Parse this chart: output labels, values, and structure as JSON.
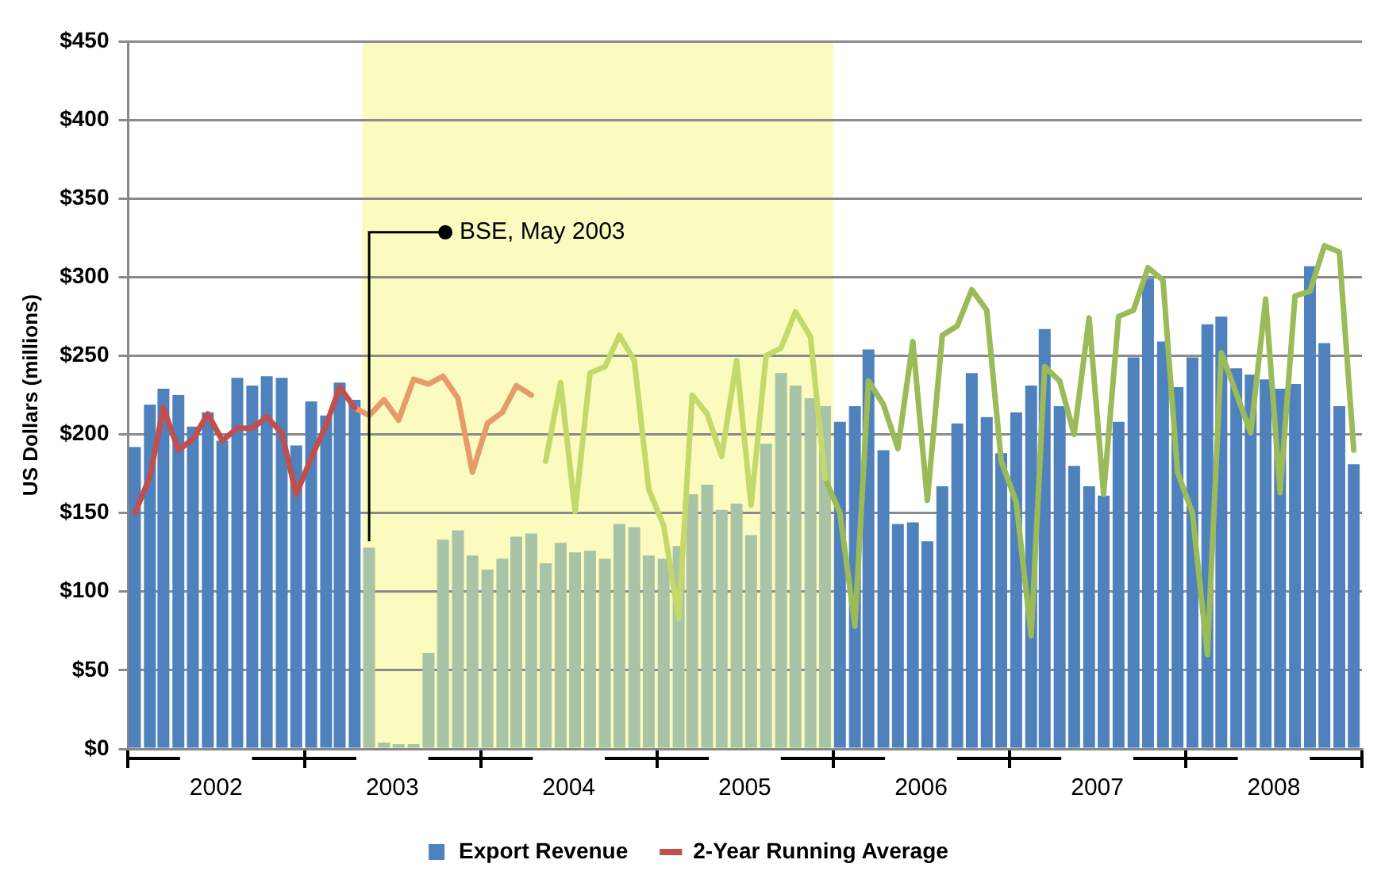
{
  "chart_data": {
    "type": "bar",
    "ylabel": "US Dollars (millions)",
    "x": [
      "2002-01-15",
      "2002-02-15",
      "2002-03-15",
      "2002-04-15",
      "2002-05-15",
      "2002-06-15",
      "2002-07-15",
      "2002-08-15",
      "2002-09-15",
      "2002-10-15",
      "2002-11-15",
      "2002-12-15",
      "2003-01-15",
      "2003-02-15",
      "2003-03-15",
      "2003-04-15",
      "2003-05-15",
      "2003-06-15",
      "2003-07-15",
      "2003-08-15",
      "2003-09-15",
      "2003-10-15",
      "2003-11-15",
      "2003-12-15",
      "2004-01-15",
      "2004-02-15",
      "2004-03-15",
      "2004-04-15",
      "2004-05-15",
      "2004-06-15",
      "2004-07-15",
      "2004-08-15",
      "2004-09-15",
      "2004-10-15",
      "2004-11-15",
      "2004-12-15",
      "2005-01-15",
      "2005-02-15",
      "2005-03-15",
      "2005-04-15",
      "2005-05-15",
      "2005-06-15",
      "2005-07-15",
      "2005-08-15",
      "2005-09-15",
      "2005-10-15",
      "2005-11-15",
      "2005-12-15",
      "2006-01-15",
      "2006-02-15",
      "2006-03-15",
      "2006-04-15",
      "2006-05-15",
      "2006-06-15",
      "2006-07-15",
      "2006-08-15",
      "2006-09-15",
      "2006-10-15",
      "2006-11-15",
      "2006-12-15",
      "2007-01-15",
      "2007-02-15",
      "2007-03-15",
      "2007-04-15",
      "2007-05-15",
      "2007-06-15",
      "2007-07-15",
      "2007-08-15",
      "2007-09-15",
      "2007-10-15",
      "2007-11-15",
      "2007-12-15",
      "2008-01-15",
      "2008-02-15",
      "2008-03-15",
      "2008-04-15",
      "2008-05-15",
      "2008-06-15",
      "2008-07-15",
      "2008-08-15",
      "2008-09-15",
      "2008-10-15",
      "2008-11-15",
      "2008-12-15"
    ],
    "series": [
      {
        "name": "Export Revenue",
        "values": [
          192,
          219,
          229,
          225,
          205,
          214,
          196,
          236,
          231,
          237,
          236,
          193,
          221,
          212,
          233,
          222,
          128,
          4,
          3,
          3,
          61,
          133,
          139,
          123,
          114,
          121,
          135,
          137,
          118,
          131,
          125,
          126,
          121,
          143,
          141,
          123,
          121,
          129,
          162,
          168,
          152,
          156,
          136,
          194,
          239,
          231,
          223,
          218,
          208,
          218,
          254,
          190,
          143,
          144,
          132,
          167,
          207,
          239,
          211,
          188,
          214,
          231,
          267,
          218,
          180,
          167,
          161,
          208,
          249,
          299,
          259,
          230,
          249,
          270,
          275,
          242,
          238,
          235,
          229,
          232,
          307,
          258,
          218,
          181
        ],
        "colors": [
          "#4f81bd",
          "#4f81bd",
          "#4f81bd",
          "#4f81bd",
          "#4f81bd",
          "#4f81bd",
          "#4f81bd",
          "#4f81bd",
          "#4f81bd",
          "#4f81bd",
          "#4f81bd",
          "#4f81bd",
          "#4f81bd",
          "#4f81bd",
          "#4f81bd",
          "#4f81bd",
          "#a9c3a6",
          "#a9c3a6",
          "#a9c3a6",
          "#a9c3a6",
          "#a9c3a6",
          "#a9c3a6",
          "#a9c3a6",
          "#a9c3a6",
          "#a9c3a6",
          "#a9c3a6",
          "#a9c3a6",
          "#a9c3a6",
          "#a9c3a6",
          "#a9c3a6",
          "#a9c3a6",
          "#a9c3a6",
          "#a9c3a6",
          "#a9c3a6",
          "#a9c3a6",
          "#a9c3a6",
          "#a9c3a6",
          "#a9c3a6",
          "#a9c3a6",
          "#a9c3a6",
          "#a9c3a6",
          "#a9c3a6",
          "#a9c3a6",
          "#a9c3a6",
          "#a9c3a6",
          "#a9c3a6",
          "#a9c3a6",
          "#a9c3a6",
          "#4f81bd",
          "#4f81bd",
          "#4f81bd",
          "#4f81bd",
          "#4f81bd",
          "#4f81bd",
          "#4f81bd",
          "#4f81bd",
          "#4f81bd",
          "#4f81bd",
          "#4f81bd",
          "#4f81bd",
          "#4f81bd",
          "#4f81bd",
          "#4f81bd",
          "#4f81bd",
          "#4f81bd",
          "#4f81bd",
          "#4f81bd",
          "#4f81bd",
          "#4f81bd",
          "#4f81bd",
          "#4f81bd",
          "#4f81bd",
          "#4f81bd",
          "#4f81bd",
          "#4f81bd",
          "#4f81bd",
          "#4f81bd",
          "#4f81bd",
          "#4f81bd",
          "#4f81bd",
          "#4f81bd",
          "#4f81bd",
          "#4f81bd",
          "#4f81bd"
        ]
      },
      {
        "name": "2-Year Running Average",
        "type": "line",
        "color": "#c0504d",
        "values": [
          150,
          173,
          217,
          190,
          197,
          213,
          196,
          204,
          204,
          211,
          201,
          162,
          185,
          206,
          230,
          217,
          null,
          null,
          null,
          null,
          null,
          null,
          null,
          null,
          null,
          null,
          null,
          null,
          null,
          null,
          null,
          null,
          null,
          null,
          null,
          null,
          null,
          null,
          null,
          null,
          null,
          null,
          null,
          null,
          null,
          null,
          null,
          null,
          null,
          null,
          null,
          null,
          null,
          null,
          null,
          null,
          null,
          null,
          null,
          null,
          null,
          null,
          null,
          null,
          null,
          null,
          null,
          null,
          null,
          null,
          null,
          null,
          null,
          null,
          null,
          null,
          null,
          null,
          null,
          null,
          null,
          null,
          null,
          null
        ]
      },
      {
        "type": "line",
        "color": "#e59b6a",
        "values": [
          null,
          null,
          null,
          null,
          null,
          null,
          null,
          null,
          null,
          null,
          null,
          null,
          null,
          null,
          null,
          217,
          212,
          222,
          209,
          235,
          232,
          237,
          223,
          176,
          207,
          214,
          231,
          225,
          null,
          null,
          null,
          null,
          null,
          null,
          null,
          null,
          null,
          null,
          null,
          null,
          null,
          null,
          null,
          null,
          null,
          null,
          null,
          null,
          null,
          null,
          null,
          null,
          null,
          null,
          null,
          null,
          null,
          null,
          null,
          null,
          null,
          null,
          null,
          null,
          null,
          null,
          null,
          null,
          null,
          null,
          null,
          null,
          null,
          null,
          null,
          null,
          null,
          null,
          null,
          null,
          null,
          null,
          null,
          null
        ]
      },
      {
        "type": "line",
        "color": "#c5d96a",
        "values": [
          null,
          null,
          null,
          null,
          null,
          null,
          null,
          null,
          null,
          null,
          null,
          null,
          null,
          null,
          null,
          null,
          null,
          null,
          null,
          null,
          null,
          null,
          null,
          null,
          null,
          null,
          null,
          null,
          183,
          233,
          151,
          239,
          243,
          263,
          247,
          165,
          142,
          83,
          225,
          213,
          186,
          247,
          155,
          250,
          255,
          278,
          262,
          172,
          null,
          null,
          null,
          null,
          null,
          null,
          null,
          null,
          null,
          null,
          null,
          null,
          null,
          null,
          null,
          null,
          null,
          null,
          null,
          null,
          null,
          null,
          null,
          null,
          null,
          null,
          null,
          null,
          null,
          null,
          null,
          null,
          null,
          null,
          null,
          null
        ]
      },
      {
        "type": "line",
        "color": "#9bbb59",
        "values": [
          null,
          null,
          null,
          null,
          null,
          null,
          null,
          null,
          null,
          null,
          null,
          null,
          null,
          null,
          null,
          null,
          null,
          null,
          null,
          null,
          null,
          null,
          null,
          null,
          null,
          null,
          null,
          null,
          null,
          null,
          null,
          null,
          null,
          null,
          null,
          null,
          null,
          null,
          null,
          null,
          null,
          null,
          null,
          null,
          null,
          null,
          null,
          172,
          150,
          78,
          234,
          219,
          191,
          259,
          158,
          263,
          269,
          292,
          279,
          183,
          157,
          72,
          243,
          234,
          200,
          274,
          162,
          275,
          279,
          306,
          298,
          176,
          150,
          60,
          252,
          226,
          201,
          286,
          163,
          288,
          291,
          320,
          316,
          190
        ]
      }
    ],
    "xlim": [
      "2002-01-01",
      "2009-01-01"
    ],
    "xticks": [
      {
        "value": "2002-01-01",
        "label": null
      },
      {
        "value": "2002-07-02",
        "label": "2002"
      },
      {
        "value": "2003-01-01",
        "label": null
      },
      {
        "value": "2003-07-02",
        "label": "2003"
      },
      {
        "value": "2004-01-01",
        "label": null
      },
      {
        "value": "2004-07-02",
        "label": "2004"
      },
      {
        "value": "2005-01-01",
        "label": null
      },
      {
        "value": "2005-07-02",
        "label": "2005"
      },
      {
        "value": "2006-01-01",
        "label": null
      },
      {
        "value": "2006-07-02",
        "label": "2006"
      },
      {
        "value": "2007-01-01",
        "label": null
      },
      {
        "value": "2007-07-02",
        "label": "2007"
      },
      {
        "value": "2008-01-01",
        "label": null
      },
      {
        "value": "2008-07-02",
        "label": "2008"
      },
      {
        "value": "2009-01-01",
        "label": null
      }
    ],
    "ylim": [
      0,
      450
    ],
    "yticks": [
      {
        "value": 0,
        "label": "$0"
      },
      {
        "value": 50,
        "label": "$50"
      },
      {
        "value": 100,
        "label": "$100"
      },
      {
        "value": 150,
        "label": "$150"
      },
      {
        "value": 200,
        "label": "$200"
      },
      {
        "value": 250,
        "label": "$250"
      },
      {
        "value": 300,
        "label": "$300"
      },
      {
        "value": 350,
        "label": "$350"
      },
      {
        "value": 400,
        "label": "$400"
      },
      {
        "value": 450,
        "label": "$450"
      }
    ],
    "bands": [
      {
        "axis": "x",
        "from": "2003-05-01",
        "to": "2006-01-01",
        "color": "#fbfbbf"
      }
    ],
    "annotations": [
      {
        "text": "BSE, May 2003",
        "x": "2003-05-15",
        "y": 128
      }
    ],
    "grid": "y",
    "legend": "bottom",
    "marker": "none",
    "line_style": "solid"
  }
}
